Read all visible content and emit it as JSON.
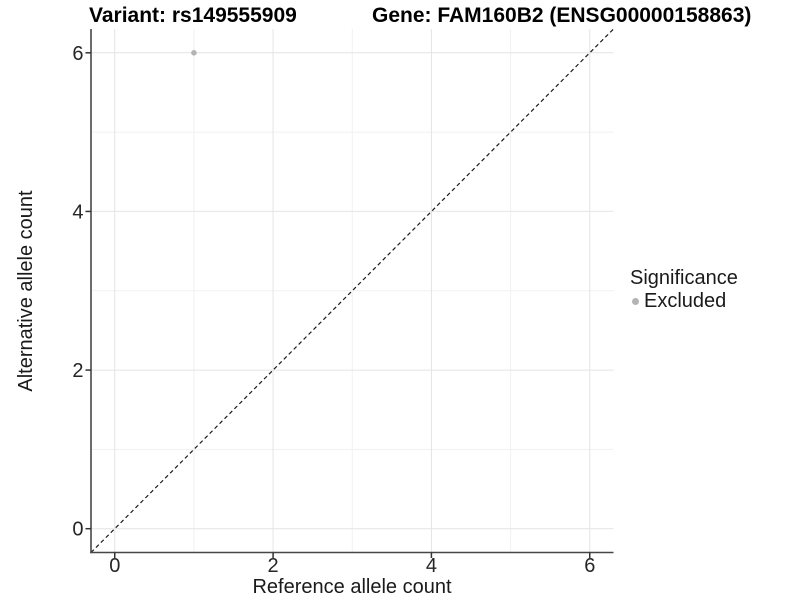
{
  "chart_data": {
    "type": "scatter",
    "title_left": "Variant: rs149555909",
    "title_right": "Gene: FAM160B2 (ENSG00000158863)",
    "xlabel": "Reference allele count",
    "ylabel": "Alternative allele count",
    "xlim": [
      -0.3,
      6.3
    ],
    "ylim": [
      -0.3,
      6.3
    ],
    "xticks": [
      0,
      2,
      4,
      6
    ],
    "yticks": [
      0,
      2,
      4,
      6
    ],
    "grid_major": [
      0,
      2,
      4,
      6
    ],
    "grid_minor": [
      1,
      3,
      5
    ],
    "points": [
      {
        "x": 1,
        "y": 6,
        "series": "Excluded"
      }
    ],
    "reference_line": {
      "type": "identity",
      "style": "dashed",
      "from": [
        -0.3,
        -0.3
      ],
      "to": [
        6.3,
        6.3
      ]
    },
    "legend": {
      "position": "right",
      "title": "Significance",
      "entries": [
        {
          "label": "Excluded",
          "color": "#b4b4b4"
        }
      ]
    },
    "colors": {
      "point_excluded": "#b4b4b4",
      "grid_major": "#e4e4e4",
      "grid_minor": "#f1f1f1",
      "axis_line": "#474747",
      "tick_mark": "#333333",
      "tick_label": "#262626",
      "dashed_line": "#1a1a1a",
      "background": "#ffffff"
    }
  }
}
